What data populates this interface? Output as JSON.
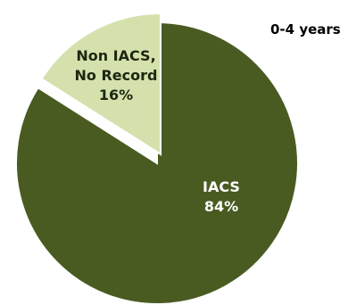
{
  "chart_data": {
    "type": "pie",
    "title": "0-4 years",
    "slices": [
      {
        "label_lines": [
          "IACS",
          "84%"
        ],
        "value": 84,
        "color": "#4a5b22",
        "label_color": "#ffffff"
      },
      {
        "label_lines": [
          "Non IACS,",
          "No Record",
          "16%"
        ],
        "value": 16,
        "color": "#d4e1ad",
        "label_color": "#1e2610"
      }
    ],
    "legend": "none"
  }
}
